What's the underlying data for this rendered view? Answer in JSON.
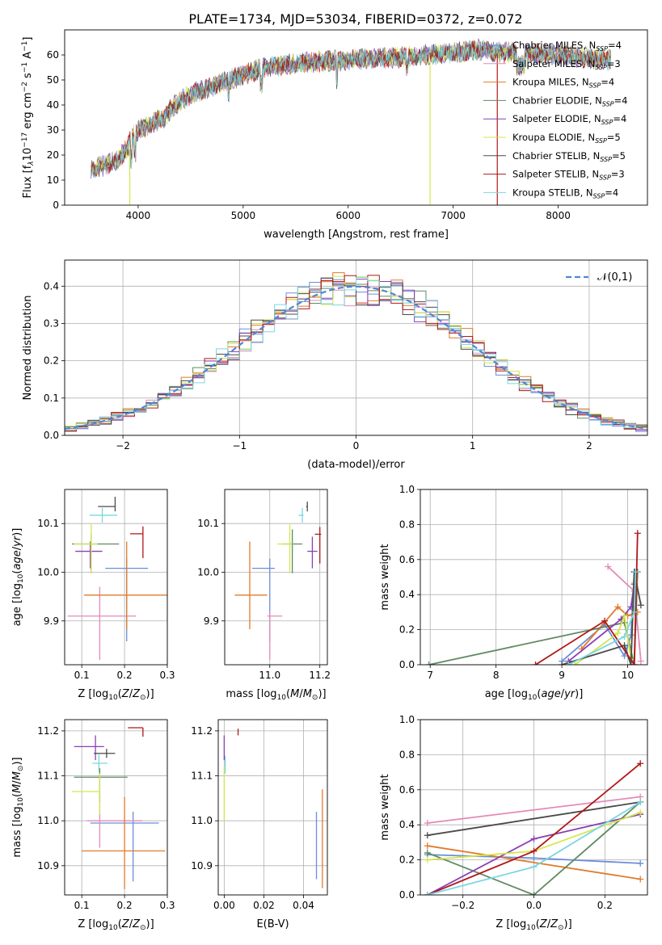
{
  "figure": {
    "title": "PLATE=1734, MJD=53034, FIBERID=0372, z=0.072"
  },
  "models": [
    {
      "name": "Chabrier MILES",
      "nssp": "4",
      "color": "#6a8fd8"
    },
    {
      "name": "Salpeter MILES",
      "nssp": "3",
      "color": "#e48ab8"
    },
    {
      "name": "Kroupa MILES",
      "nssp": "4",
      "color": "#e07b2a"
    },
    {
      "name": "Chabrier ELODIE",
      "nssp": "4",
      "color": "#5f8a62"
    },
    {
      "name": "Salpeter ELODIE",
      "nssp": "4",
      "color": "#8a3fb5"
    },
    {
      "name": "Kroupa ELODIE",
      "nssp": "5",
      "color": "#d4e64a"
    },
    {
      "name": "Chabrier STELIB",
      "nssp": "5",
      "color": "#4a4a4a"
    },
    {
      "name": "Salpeter STELIB",
      "nssp": "3",
      "color": "#b01818"
    },
    {
      "name": "Kroupa STELIB",
      "nssp": "4",
      "color": "#7ad6e2"
    }
  ],
  "chart_data": [
    {
      "id": "spectrum",
      "type": "line",
      "xlabel": "wavelength [Angstrom, rest frame]",
      "ylabel": "Flux [f_λ10^-17 erg cm^-2 s^-1 A^-1]",
      "xlim": [
        3300,
        8850
      ],
      "ylim": [
        0,
        70
      ],
      "xticks": [
        4000,
        5000,
        6000,
        7000,
        8000
      ],
      "yticks": [
        0,
        10,
        20,
        30,
        40,
        50,
        60
      ],
      "legend_position": "right",
      "continuum": {
        "x": [
          3550,
          3800,
          3900,
          3950,
          4050,
          4250,
          4350,
          4500,
          4800,
          5000,
          5200,
          5600,
          6000,
          6400,
          6800,
          7200,
          7500,
          8000,
          8500
        ],
        "y": [
          14,
          18,
          23,
          28,
          31,
          35,
          40,
          44,
          49,
          52,
          55,
          57,
          58,
          59,
          60,
          62,
          61,
          60,
          58
        ]
      },
      "dropouts": [
        {
          "model": "Kroupa ELODIE",
          "x": 3920
        },
        {
          "model": "Kroupa ELODIE",
          "x": 6780
        },
        {
          "model": "Salpeter STELIB",
          "x": 7420
        }
      ]
    },
    {
      "id": "residuals",
      "type": "bar",
      "xlabel": "(data-model)/error",
      "ylabel": "Normed distribution",
      "xlim": [
        -2.5,
        2.5
      ],
      "ylim": [
        0,
        0.47
      ],
      "xticks": [
        -2,
        -1,
        0,
        1,
        2
      ],
      "yticks": [
        0.0,
        0.1,
        0.2,
        0.3,
        0.4
      ],
      "grid": true,
      "legend_position": "top-right",
      "legend_label": "𝒩(0,1)",
      "bin_width": 0.1,
      "reference_curve": "normal(0,1)"
    },
    {
      "id": "age-vs-Z",
      "type": "scatter",
      "xlabel": "Z [log10(Z/Z☉)]",
      "ylabel": "age  [log10(age/yr)]",
      "xlim": [
        0.06,
        0.3
      ],
      "ylim": [
        9.81,
        10.17
      ],
      "xticks": [
        0.1,
        0.2,
        0.3
      ],
      "yticks": [
        9.9,
        10.0,
        10.1
      ],
      "grid": true,
      "points": [
        {
          "model": "Chabrier MILES",
          "x": 0.205,
          "y": 10.008,
          "xerr": [
            0.05,
            0.05
          ],
          "yerr": [
            0.15,
            0.02
          ]
        },
        {
          "model": "Salpeter MILES",
          "x": 0.142,
          "y": 9.91,
          "xerr": [
            0.075,
            0.085
          ],
          "yerr": [
            0.09,
            0.06
          ]
        },
        {
          "model": "Kroupa MILES",
          "x": 0.205,
          "y": 9.953,
          "xerr": [
            0.1,
            0.095
          ],
          "yerr": [
            0.07,
            0.11
          ]
        },
        {
          "model": "Chabrier ELODIE",
          "x": 0.122,
          "y": 10.058,
          "xerr": [
            0.045,
            0.065
          ],
          "yerr": [
            0.06,
            0.02
          ]
        },
        {
          "model": "Salpeter ELODIE",
          "x": 0.12,
          "y": 10.043,
          "xerr": [
            0.035,
            0.028
          ],
          "yerr": [
            0.035,
            0.02
          ]
        },
        {
          "model": "Kroupa ELODIE",
          "x": 0.122,
          "y": 10.058,
          "xerr": [
            0.04,
            0.015
          ],
          "yerr": [
            0.06,
            0.04
          ]
        },
        {
          "model": "Chabrier STELIB",
          "x": 0.178,
          "y": 10.135,
          "xerr": [
            0.04,
            0.0
          ],
          "yerr": [
            0.01,
            0.02
          ]
        },
        {
          "model": "Salpeter STELIB",
          "x": 0.243,
          "y": 10.079,
          "xerr": [
            0.03,
            0.0
          ],
          "yerr": [
            0.05,
            0.015
          ]
        },
        {
          "model": "Kroupa STELIB",
          "x": 0.148,
          "y": 10.117,
          "xerr": [
            0.03,
            0.035
          ],
          "yerr": [
            0.015,
            0.015
          ]
        }
      ]
    },
    {
      "id": "age-vs-mass",
      "type": "scatter",
      "xlabel": "mass [log10(M/M☉)]",
      "ylabel": "",
      "xlim": [
        10.82,
        11.23
      ],
      "ylim": [
        9.81,
        10.17
      ],
      "xticks": [
        11.0,
        11.2
      ],
      "yticks": [
        9.9,
        10.0,
        10.1
      ],
      "grid": true,
      "points": [
        {
          "model": "Chabrier MILES",
          "x": 11.0,
          "y": 10.008,
          "xerr": [
            0.07,
            0.02
          ],
          "yerr": [
            0.15,
            0.02
          ]
        },
        {
          "model": "Salpeter MILES",
          "x": 11.0,
          "y": 9.91,
          "xerr": [
            0.01,
            0.05
          ],
          "yerr": [
            0.09,
            0.01
          ]
        },
        {
          "model": "Kroupa MILES",
          "x": 10.92,
          "y": 9.953,
          "xerr": [
            0.06,
            0.07
          ],
          "yerr": [
            0.07,
            0.11
          ]
        },
        {
          "model": "Chabrier ELODIE",
          "x": 11.09,
          "y": 10.058,
          "xerr": [
            0.04,
            0.04
          ],
          "yerr": [
            0.06,
            0.03
          ]
        },
        {
          "model": "Salpeter ELODIE",
          "x": 11.17,
          "y": 10.043,
          "xerr": [
            0.02,
            0.02
          ],
          "yerr": [
            0.035,
            0.03
          ]
        },
        {
          "model": "Kroupa ELODIE",
          "x": 11.08,
          "y": 10.058,
          "xerr": [
            0.05,
            0.01
          ],
          "yerr": [
            0.06,
            0.04
          ]
        },
        {
          "model": "Chabrier STELIB",
          "x": 11.15,
          "y": 10.135,
          "xerr": [
            0.005,
            0.0
          ],
          "yerr": [
            0.01,
            0.01
          ]
        },
        {
          "model": "Salpeter STELIB",
          "x": 11.2,
          "y": 10.078,
          "xerr": [
            0.02,
            0.005
          ],
          "yerr": [
            0.06,
            0.015
          ]
        },
        {
          "model": "Kroupa STELIB",
          "x": 11.13,
          "y": 10.117,
          "xerr": [
            0.015,
            0.005
          ],
          "yerr": [
            0.015,
            0.015
          ]
        }
      ]
    },
    {
      "id": "weight-vs-age",
      "type": "line",
      "xlabel": "age  [log10(age/yr)]",
      "ylabel": "mass weight",
      "xlim": [
        6.85,
        10.3
      ],
      "ylim": [
        0,
        1.0
      ],
      "xticks": [
        7,
        8,
        9,
        10
      ],
      "yticks": [
        0.0,
        0.2,
        0.4,
        0.6,
        0.8,
        1.0
      ],
      "grid": true,
      "series": [
        {
          "name": "Chabrier MILES",
          "x": [
            9.0,
            9.65,
            9.95,
            10.05,
            10.1
          ],
          "y": [
            0.02,
            0.23,
            0.05,
            0.17,
            0.53
          ]
        },
        {
          "name": "Salpeter MILES",
          "x": [
            9.7,
            10.1,
            10.2
          ],
          "y": [
            0.56,
            0.42,
            0.02
          ]
        },
        {
          "name": "Kroupa MILES",
          "x": [
            9.3,
            9.85,
            10.0,
            10.15
          ],
          "y": [
            0.09,
            0.33,
            0.28,
            0.3
          ]
        },
        {
          "name": "Chabrier ELODIE",
          "x": [
            6.98,
            9.95,
            10.1,
            10.15
          ],
          "y": [
            0.0,
            0.24,
            0.0,
            0.53
          ]
        },
        {
          "name": "Salpeter ELODIE",
          "x": [
            9.1,
            9.9,
            10.05,
            10.1
          ],
          "y": [
            0.02,
            0.26,
            0.33,
            0.46
          ]
        },
        {
          "name": "Kroupa ELODIE",
          "x": [
            9.2,
            9.85,
            9.95,
            10.05,
            10.1
          ],
          "y": [
            0.0,
            0.18,
            0.28,
            0.03,
            0.47
          ]
        },
        {
          "name": "Chabrier STELIB",
          "x": [
            9.0,
            9.95,
            10.05,
            10.1,
            10.2
          ],
          "y": [
            0.0,
            0.11,
            0.0,
            0.53,
            0.34
          ]
        },
        {
          "name": "Salpeter STELIB",
          "x": [
            8.6,
            9.65,
            10.1,
            10.15
          ],
          "y": [
            0.0,
            0.25,
            0.0,
            0.75
          ]
        },
        {
          "name": "Kroupa STELIB",
          "x": [
            9.1,
            9.95,
            10.1,
            10.12
          ],
          "y": [
            0.0,
            0.16,
            0.3,
            0.53
          ]
        }
      ]
    },
    {
      "id": "mass-vs-Z",
      "type": "scatter",
      "xlabel": "Z [log10(Z/Z☉)]",
      "ylabel": "mass [log10(M/M☉)]",
      "xlim": [
        0.06,
        0.3
      ],
      "ylim": [
        10.835,
        11.225
      ],
      "xticks": [
        0.1,
        0.2,
        0.3
      ],
      "yticks": [
        10.9,
        11.0,
        11.1,
        11.2
      ],
      "grid": true,
      "points": [
        {
          "model": "Chabrier MILES",
          "x": 0.22,
          "y": 10.995,
          "xerr": [
            0.1,
            0.06
          ],
          "yerr": [
            0.13,
            0.025
          ]
        },
        {
          "model": "Salpeter MILES",
          "x": 0.142,
          "y": 11.0,
          "xerr": [
            0.03,
            0.1
          ],
          "yerr": [
            0.06,
            0.06
          ]
        },
        {
          "model": "Kroupa MILES",
          "x": 0.2,
          "y": 10.933,
          "xerr": [
            0.1,
            0.095
          ],
          "yerr": [
            0.085,
            0.12
          ]
        },
        {
          "model": "Chabrier ELODIE",
          "x": 0.142,
          "y": 11.097,
          "xerr": [
            0.06,
            0.065
          ],
          "yerr": [
            0.055,
            0.02
          ]
        },
        {
          "model": "Salpeter ELODIE",
          "x": 0.132,
          "y": 11.165,
          "xerr": [
            0.05,
            0.02
          ],
          "yerr": [
            0.03,
            0.025
          ]
        },
        {
          "model": "Kroupa ELODIE",
          "x": 0.142,
          "y": 11.065,
          "xerr": [
            0.065,
            0.0
          ],
          "yerr": [
            0.05,
            0.04
          ]
        },
        {
          "model": "Chabrier STELIB",
          "x": 0.158,
          "y": 11.15,
          "xerr": [
            0.03,
            0.02
          ],
          "yerr": [
            0.01,
            0.01
          ]
        },
        {
          "model": "Salpeter STELIB",
          "x": 0.243,
          "y": 11.207,
          "xerr": [
            0.035,
            0.0
          ],
          "yerr": [
            0.02,
            0.0
          ]
        },
        {
          "model": "Kroupa STELIB",
          "x": 0.14,
          "y": 11.128,
          "xerr": [
            0.015,
            0.02
          ],
          "yerr": [
            0.02,
            0.02
          ]
        }
      ]
    },
    {
      "id": "mass-vs-ebv",
      "type": "scatter",
      "xlabel": "E(B-V)",
      "ylabel": "",
      "xlim": [
        -0.003,
        0.052
      ],
      "ylim": [
        10.835,
        11.225
      ],
      "xticks": [
        0.0,
        0.02,
        0.04
      ],
      "yticks": [
        10.9,
        11.0,
        11.1,
        11.2
      ],
      "grid": true,
      "points": [
        {
          "model": "Chabrier MILES",
          "x": 0.0465,
          "y": 10.95,
          "xerr": [
            0,
            0
          ],
          "yerr": [
            0.08,
            0.07
          ]
        },
        {
          "model": "Kroupa MILES",
          "x": 0.0495,
          "y": 10.96,
          "xerr": [
            0,
            0
          ],
          "yerr": [
            0.11,
            0.11
          ]
        },
        {
          "model": "Kroupa ELODIE",
          "x": 0.0,
          "y": 11.06,
          "xerr": [
            0,
            0
          ],
          "yerr": [
            0.06,
            0.06
          ]
        },
        {
          "model": "Kroupa STELIB",
          "x": 0.0005,
          "y": 11.125,
          "xerr": [
            0,
            0
          ],
          "yerr": [
            0.02,
            0.02
          ]
        },
        {
          "model": "Salpeter ELODIE",
          "x": 0.0,
          "y": 11.165,
          "xerr": [
            0,
            0
          ],
          "yerr": [
            0.03,
            0.025
          ]
        },
        {
          "model": "Salpeter STELIB",
          "x": 0.007,
          "y": 11.205,
          "xerr": [
            0,
            0
          ],
          "yerr": [
            0.015,
            0.0
          ]
        }
      ]
    },
    {
      "id": "weight-vs-Z",
      "type": "line",
      "xlabel": "Z [log10(Z/Z☉)]",
      "ylabel": "mass weight",
      "xlim": [
        -0.32,
        0.32
      ],
      "ylim": [
        0,
        1.0
      ],
      "xticks": [
        -0.2,
        0.0,
        0.2
      ],
      "yticks": [
        0.0,
        0.2,
        0.4,
        0.6,
        0.8,
        1.0
      ],
      "grid": true,
      "series": [
        {
          "name": "Chabrier MILES",
          "x": [
            -0.3,
            0.0,
            0.3
          ],
          "y": [
            0.23,
            0.21,
            0.18
          ]
        },
        {
          "name": "Salpeter MILES",
          "x": [
            -0.3,
            0.3
          ],
          "y": [
            0.41,
            0.56
          ]
        },
        {
          "name": "Kroupa MILES",
          "x": [
            -0.3,
            0.3
          ],
          "y": [
            0.28,
            0.09
          ]
        },
        {
          "name": "Chabrier ELODIE",
          "x": [
            -0.3,
            0.0,
            0.3
          ],
          "y": [
            0.24,
            0.0,
            0.53
          ]
        },
        {
          "name": "Salpeter ELODIE",
          "x": [
            -0.3,
            0.0,
            0.3
          ],
          "y": [
            0.0,
            0.32,
            0.46
          ]
        },
        {
          "name": "Kroupa ELODIE",
          "x": [
            -0.3,
            0.0,
            0.3
          ],
          "y": [
            0.2,
            0.25,
            0.47
          ]
        },
        {
          "name": "Chabrier STELIB",
          "x": [
            -0.3,
            0.3
          ],
          "y": [
            0.34,
            0.53
          ]
        },
        {
          "name": "Salpeter STELIB",
          "x": [
            -0.3,
            0.0,
            0.3
          ],
          "y": [
            0.0,
            0.25,
            0.75
          ]
        },
        {
          "name": "Kroupa STELIB",
          "x": [
            -0.3,
            0.0,
            0.3
          ],
          "y": [
            0.0,
            0.16,
            0.53
          ]
        }
      ]
    }
  ]
}
